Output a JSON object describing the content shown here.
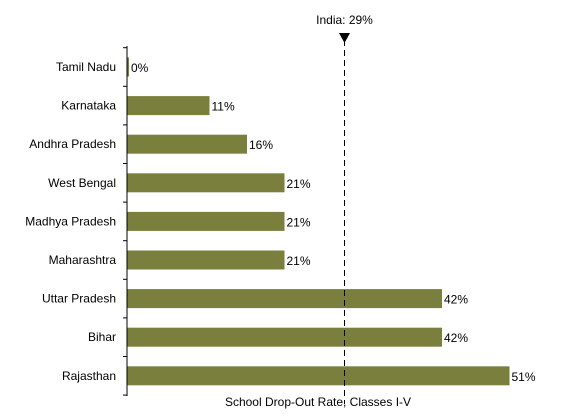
{
  "colors": {
    "bar": "#7a7f3e",
    "axis": "#000000",
    "reference_line": "#000000",
    "text": "#000000",
    "background": "#ffffff"
  },
  "chart_data": {
    "type": "bar",
    "orientation": "horizontal",
    "title": "",
    "xlabel": "School Drop-Out Rate, Classes I-V",
    "ylabel": "",
    "categories": [
      "Tamil Nadu",
      "Karnataka",
      "Andhra Pradesh",
      "West Bengal",
      "Madhya Pradesh",
      "Maharashtra",
      "Uttar Pradesh",
      "Bihar",
      "Rajasthan"
    ],
    "values": [
      0,
      11,
      16,
      21,
      21,
      21,
      42,
      42,
      51
    ],
    "value_labels": [
      "0%",
      "11%",
      "16%",
      "21%",
      "21%",
      "21%",
      "42%",
      "42%",
      "51%"
    ],
    "value_unit": "%",
    "xlim": [
      0,
      60
    ],
    "grid": false,
    "legend": "none",
    "reference_line": {
      "value": 29,
      "label": "India: 29%",
      "style": "dashed",
      "marker": "down-triangle"
    }
  }
}
